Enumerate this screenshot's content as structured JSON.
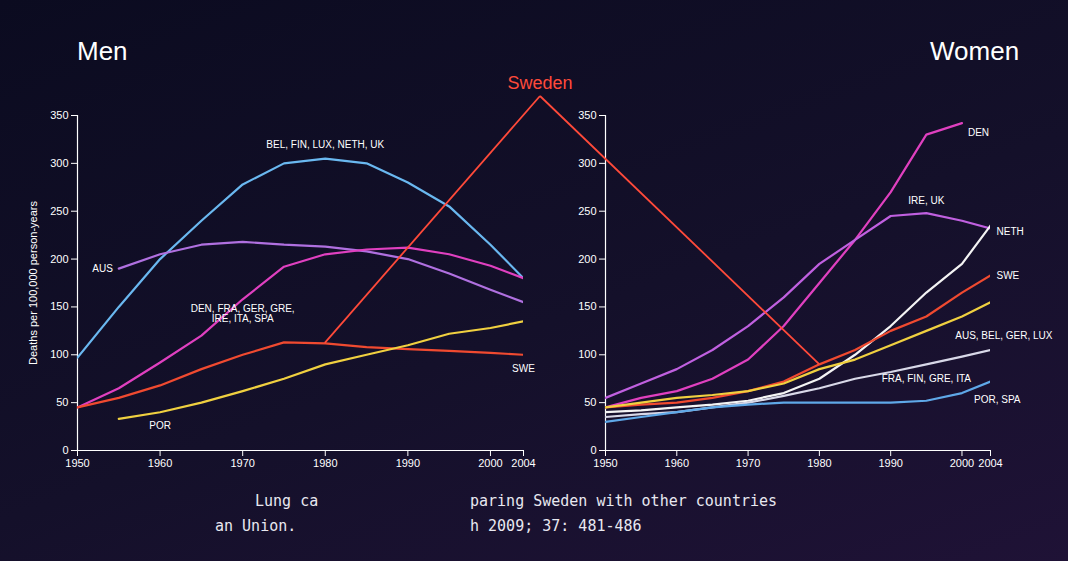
{
  "chart_data": [
    {
      "type": "line",
      "title": "Men",
      "ylabel": "Deaths per 100,000 person-years",
      "x": [
        1950,
        1955,
        1960,
        1965,
        1970,
        1975,
        1980,
        1985,
        1990,
        1995,
        2000,
        2004
      ],
      "xlim": [
        1950,
        2004
      ],
      "xticks": [
        1950,
        1960,
        1970,
        1980,
        1990,
        2000,
        2004
      ],
      "ylim": [
        0,
        350
      ],
      "yticks": [
        0,
        50,
        100,
        150,
        200,
        250,
        300,
        350
      ],
      "grid": false,
      "series": [
        {
          "name": "BEL, FIN, LUX, NETH, UK",
          "color": "#6ab8f0",
          "values": [
            97,
            150,
            200,
            240,
            278,
            300,
            305,
            300,
            280,
            255,
            215,
            180
          ]
        },
        {
          "name": "AUS",
          "color": "#b070e0",
          "values": [
            null,
            190,
            205,
            215,
            218,
            215,
            213,
            208,
            200,
            185,
            168,
            155
          ]
        },
        {
          "name": "DEN, FRA, GER, GRE, IRE, ITA, SPA",
          "color": "#e040c0",
          "values": [
            45,
            65,
            92,
            120,
            158,
            192,
            205,
            210,
            212,
            205,
            193,
            180
          ]
        },
        {
          "name": "SWE",
          "color": "#f04a30",
          "values": [
            45,
            55,
            68,
            85,
            100,
            113,
            112,
            108,
            106,
            104,
            102,
            100
          ]
        },
        {
          "name": "POR",
          "color": "#f0d040",
          "values": [
            null,
            33,
            40,
            50,
            62,
            75,
            90,
            100,
            110,
            122,
            128,
            135
          ]
        }
      ]
    },
    {
      "type": "line",
      "title": "Women",
      "x": [
        1950,
        1955,
        1960,
        1965,
        1970,
        1975,
        1980,
        1985,
        1990,
        1995,
        2000,
        2004
      ],
      "xlim": [
        1950,
        2004
      ],
      "xticks": [
        1950,
        1960,
        1970,
        1980,
        1990,
        2000,
        2004
      ],
      "ylim": [
        0,
        350
      ],
      "yticks": [
        0,
        50,
        100,
        150,
        200,
        250,
        300,
        350
      ],
      "grid": false,
      "series": [
        {
          "name": "DEN",
          "color": "#e040c0",
          "values": [
            45,
            55,
            62,
            75,
            95,
            130,
            175,
            220,
            270,
            330,
            342,
            null
          ]
        },
        {
          "name": "IRE, UK",
          "color": "#c060e0",
          "values": [
            55,
            70,
            85,
            105,
            130,
            160,
            195,
            220,
            245,
            248,
            240,
            232
          ]
        },
        {
          "name": "NETH",
          "color": "#f4f4f4",
          "values": [
            40,
            42,
            45,
            48,
            52,
            60,
            75,
            100,
            130,
            165,
            195,
            235
          ]
        },
        {
          "name": "SWE",
          "color": "#f04a30",
          "values": [
            45,
            48,
            50,
            55,
            62,
            72,
            90,
            105,
            125,
            140,
            165,
            183
          ]
        },
        {
          "name": "AUS, BEL, GER, LUX",
          "color": "#f0d040",
          "values": [
            45,
            50,
            55,
            58,
            62,
            70,
            85,
            95,
            110,
            125,
            140,
            155
          ]
        },
        {
          "name": "FRA, FIN, GRE, ITA",
          "color": "#d8d8e8",
          "values": [
            35,
            38,
            40,
            45,
            50,
            57,
            65,
            75,
            82,
            90,
            98,
            105
          ]
        },
        {
          "name": "POR, SPA",
          "color": "#5fa8e8",
          "values": [
            30,
            35,
            40,
            45,
            48,
            50,
            50,
            50,
            50,
            52,
            60,
            72
          ]
        }
      ]
    }
  ],
  "annotation": {
    "text": "Sweden",
    "color": "#ff4a3a",
    "points_to": "SWE",
    "x": 1980
  },
  "caption": [
    "Lung ca",
    "paring Sweden with other countries",
    "an Union.",
    "h 2009; 37: 481-486"
  ]
}
